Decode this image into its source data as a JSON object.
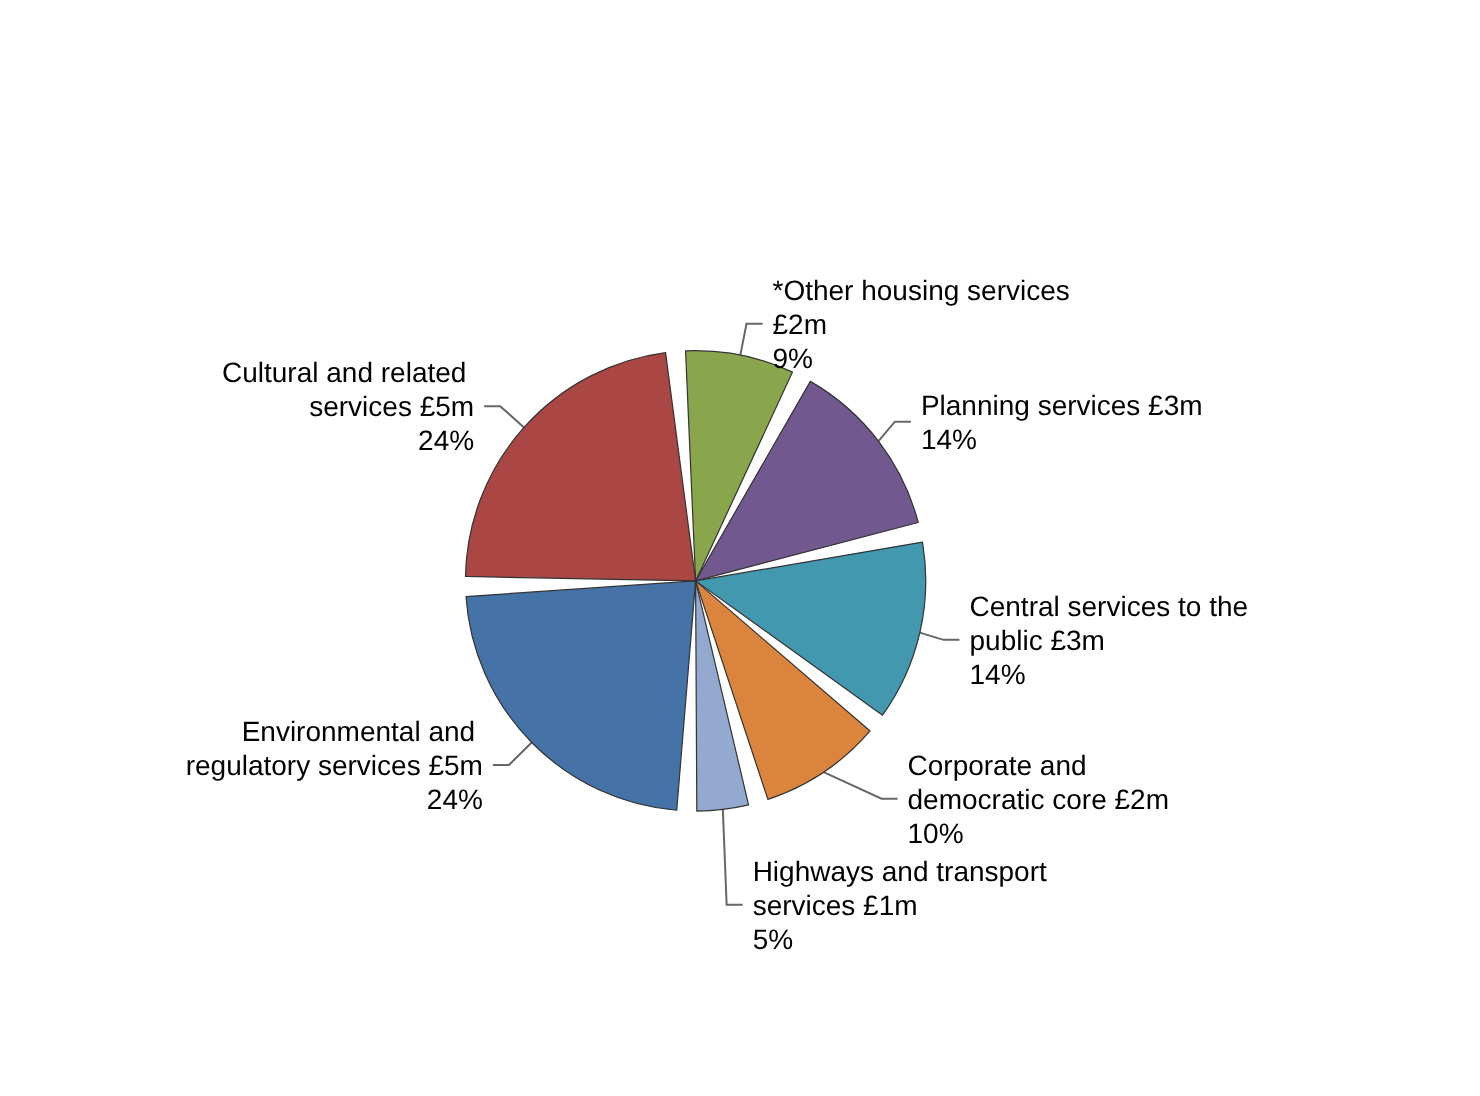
{
  "chart_data": {
    "type": "pie",
    "categories": [
      "*Other housing services",
      "Planning services",
      "Central services to the public",
      "Corporate and democratic core",
      "Highways and transport services",
      "Environmental and regulatory services",
      "Cultural and related services"
    ],
    "values": [
      9,
      14,
      14,
      10,
      5,
      24,
      24
    ],
    "value_labels": [
      "£2m\n9%",
      "£3m\n14%",
      "£3m\n14%",
      "£2m\n10%",
      "£1m\n5%",
      "£5m\n24%",
      "£5m\n24%"
    ],
    "colors": [
      "#8aa64c",
      "#71588f",
      "#4198af",
      "#db843d",
      "#93a9cf",
      "#4572a7",
      "#aa4643"
    ],
    "legend": false
  }
}
